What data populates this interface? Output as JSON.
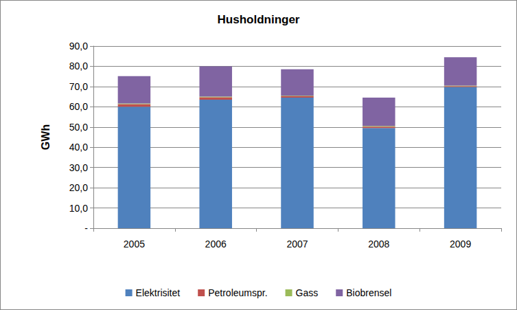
{
  "chart_data": {
    "type": "bar",
    "title": "Husholdninger",
    "y_label": "GWh",
    "categories": [
      "2005",
      "2006",
      "2007",
      "2008",
      "2009"
    ],
    "series": [
      {
        "name": "Elektrisitet",
        "color": "#4f81bd",
        "values": [
          60.0,
          63.5,
          64.5,
          49.5,
          69.8
        ]
      },
      {
        "name": "Petroleumspr.",
        "color": "#c0504d",
        "values": [
          1.3,
          1.2,
          0.7,
          0.7,
          0.4
        ]
      },
      {
        "name": "Gass",
        "color": "#9bbb59",
        "values": [
          0.3,
          0.3,
          0.3,
          0.3,
          0.3
        ]
      },
      {
        "name": "Biobrensel",
        "color": "#8064a2",
        "values": [
          13.5,
          15.0,
          13.0,
          14.0,
          14.0
        ]
      }
    ],
    "ylim": [
      0,
      90
    ],
    "yticks": [
      {
        "value": 0,
        "label": "-"
      },
      {
        "value": 10,
        "label": "10,0"
      },
      {
        "value": 20,
        "label": "20,0"
      },
      {
        "value": 30,
        "label": "30,0"
      },
      {
        "value": 40,
        "label": "40,0"
      },
      {
        "value": 50,
        "label": "50,0"
      },
      {
        "value": 60,
        "label": "60,0"
      },
      {
        "value": 70,
        "label": "70,0"
      },
      {
        "value": 80,
        "label": "80,0"
      },
      {
        "value": 90,
        "label": "90,0"
      }
    ],
    "stacked": true,
    "grid": true,
    "legend": "bottom"
  }
}
